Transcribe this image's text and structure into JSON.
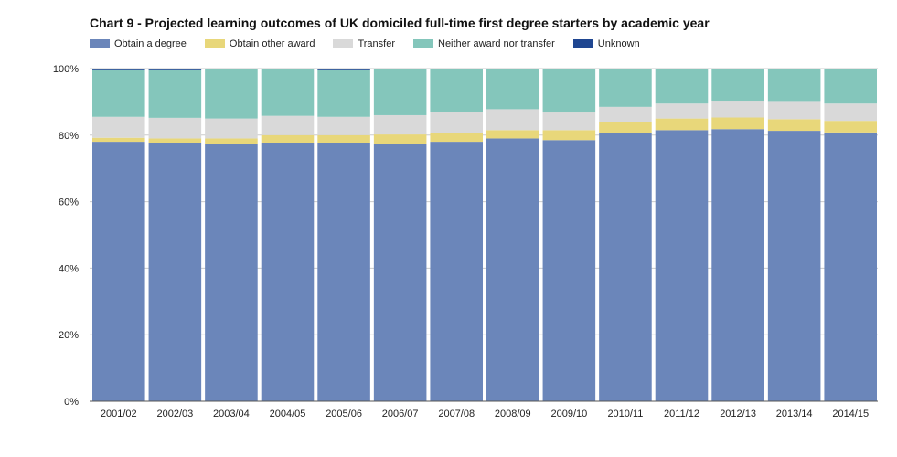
{
  "chart_data": {
    "type": "bar",
    "stacked": true,
    "title": "Chart 9 - Projected learning outcomes of UK domiciled full-time first degree starters by academic year",
    "xlabel": "",
    "ylabel": "",
    "ylim": [
      0,
      100
    ],
    "y_ticks": [
      "0%",
      "20%",
      "40%",
      "60%",
      "80%",
      "100%"
    ],
    "grid": true,
    "legend_position": "top-left",
    "categories": [
      "2001/02",
      "2002/03",
      "2003/04",
      "2004/05",
      "2005/06",
      "2006/07",
      "2007/08",
      "2008/09",
      "2009/10",
      "2010/11",
      "2011/12",
      "2012/13",
      "2013/14",
      "2014/15"
    ],
    "series": [
      {
        "name": "Obtain a degree",
        "color": "#6b86ba",
        "values": [
          78.0,
          77.5,
          77.2,
          77.5,
          77.5,
          77.2,
          78.0,
          79.0,
          78.5,
          80.5,
          81.5,
          81.8,
          81.3,
          80.8
        ]
      },
      {
        "name": "Obtain other award",
        "color": "#e8d77a",
        "values": [
          1.2,
          1.5,
          1.8,
          2.5,
          2.5,
          3.0,
          2.5,
          2.5,
          3.0,
          3.5,
          3.5,
          3.5,
          3.5,
          3.5
        ]
      },
      {
        "name": "Transfer",
        "color": "#d9d9d9",
        "values": [
          6.3,
          6.2,
          6.0,
          5.8,
          5.5,
          5.8,
          6.5,
          6.3,
          5.3,
          4.5,
          4.5,
          4.8,
          5.2,
          5.2
        ]
      },
      {
        "name": "Neither award nor transfer",
        "color": "#84c6bb",
        "values": [
          14.0,
          14.3,
          14.8,
          14.0,
          14.0,
          13.8,
          13.0,
          12.2,
          13.2,
          11.5,
          10.5,
          9.9,
          10.0,
          10.5
        ]
      },
      {
        "name": "Unknown",
        "color": "#1f4691",
        "values": [
          0.5,
          0.5,
          0.2,
          0.2,
          0.5,
          0.2,
          0.0,
          0.0,
          0.0,
          0.0,
          0.0,
          0.0,
          0.0,
          0.0
        ]
      }
    ]
  }
}
